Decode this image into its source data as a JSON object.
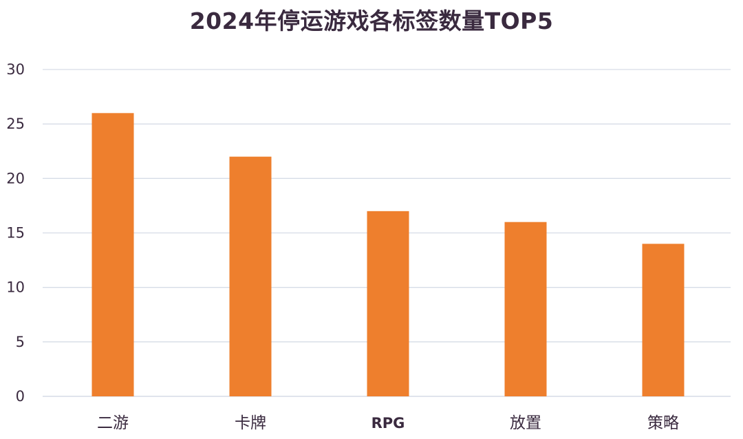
{
  "chart_data": {
    "type": "bar",
    "title": "2024年停运游戏各标签数量TOP5",
    "categories": [
      "二游",
      "卡牌",
      "RPG",
      "放置",
      "策略"
    ],
    "values": [
      26,
      22,
      17,
      16,
      14
    ],
    "ylim": [
      0,
      30
    ],
    "yticks": [
      0,
      5,
      10,
      15,
      20,
      25,
      30
    ],
    "grid": true,
    "bar_color": "#ee7f2d",
    "grid_color": "#d6dce6"
  }
}
